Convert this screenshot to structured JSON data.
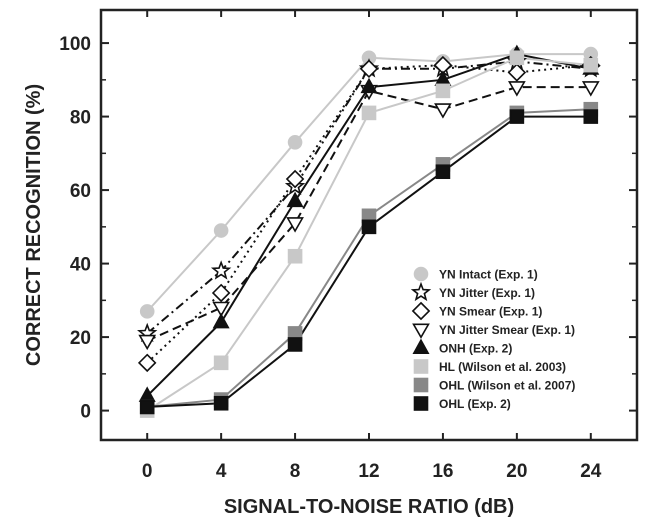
{
  "chart_data": {
    "type": "line",
    "title": "",
    "xlabel": "SIGNAL-TO-NOISE RATIO (dB)",
    "ylabel": "CORRECT RECOGNITION (%)",
    "x": [
      0,
      4,
      8,
      12,
      16,
      20,
      24
    ],
    "x_tick_labels": [
      "0",
      "4",
      "8",
      "12",
      "16",
      "20",
      "24"
    ],
    "y_tick_labels": [
      "0",
      "20",
      "40",
      "60",
      "80",
      "100"
    ],
    "xlim": [
      -2.5,
      26.5
    ],
    "ylim": [
      -8,
      109
    ],
    "grid": false,
    "legend_position": "bottom-right",
    "series": [
      {
        "name": "YN Intact (Exp. 1)",
        "values": [
          27,
          49,
          73,
          96,
          95,
          97,
          97
        ],
        "marker": "circle",
        "marker_fill": "#c8c8c8",
        "marker_stroke": "#c8c8c8",
        "line_color": "#c8c8c8",
        "line_style": "solid"
      },
      {
        "name": "YN Jitter (Exp. 1)",
        "values": [
          21,
          38,
          61,
          93,
          93,
          95,
          93
        ],
        "marker": "star",
        "marker_fill": "#ffffff",
        "marker_stroke": "#111111",
        "line_color": "#111111",
        "line_style": "dashdot"
      },
      {
        "name": "YN Smear (Exp. 1)",
        "values": [
          13,
          32,
          63,
          93,
          94,
          92,
          94
        ],
        "marker": "diamond",
        "marker_fill": "#ffffff",
        "marker_stroke": "#111111",
        "line_color": "#111111",
        "line_style": "dotted"
      },
      {
        "name": "YN Jitter Smear (Exp. 1)",
        "values": [
          19,
          28,
          51,
          87,
          82,
          88,
          88
        ],
        "marker": "triangle-down",
        "marker_fill": "#ffffff",
        "marker_stroke": "#111111",
        "line_color": "#111111",
        "line_style": "dashed"
      },
      {
        "name": "ONH (Exp. 2)",
        "values": [
          4,
          24,
          57,
          88,
          90,
          97,
          93
        ],
        "marker": "triangle-up",
        "marker_fill": "#111111",
        "marker_stroke": "#111111",
        "line_color": "#111111",
        "line_style": "solid"
      },
      {
        "name": "HL (Wilson et al. 2003)",
        "values": [
          0,
          13,
          42,
          81,
          87,
          96,
          94
        ],
        "marker": "square",
        "marker_fill": "#c8c8c8",
        "marker_stroke": "#c8c8c8",
        "line_color": "#c8c8c8",
        "line_style": "solid"
      },
      {
        "name": "OHL (Wilson et al. 2007)",
        "values": [
          1,
          3,
          21,
          53,
          67,
          81,
          82
        ],
        "marker": "square",
        "marker_fill": "#888888",
        "marker_stroke": "#888888",
        "line_color": "#888888",
        "line_style": "solid"
      },
      {
        "name": "OHL (Exp. 2)",
        "values": [
          1,
          2,
          18,
          50,
          65,
          80,
          80
        ],
        "marker": "square",
        "marker_fill": "#111111",
        "marker_stroke": "#111111",
        "line_color": "#111111",
        "line_style": "solid"
      }
    ]
  }
}
